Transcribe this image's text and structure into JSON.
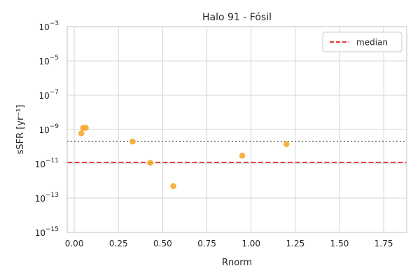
{
  "chart_data": {
    "type": "scatter",
    "title": "Halo 91 - Fósil",
    "xlabel": "Rnorm",
    "ylabel": "sSFR [yr⁻¹]",
    "x_scale": "linear",
    "y_scale": "log",
    "xlim": [
      -0.04,
      1.88
    ],
    "ylim": [
      1e-15,
      0.001
    ],
    "x_ticks": [
      0.0,
      0.25,
      0.5,
      0.75,
      1.0,
      1.25,
      1.5,
      1.75
    ],
    "x_tick_labels": [
      "0.00",
      "0.25",
      "0.50",
      "0.75",
      "1.00",
      "1.25",
      "1.50",
      "1.75"
    ],
    "y_ticks": [
      1e-15,
      1e-13,
      1e-11,
      1e-09,
      1e-07,
      1e-05,
      0.001
    ],
    "y_tick_labels": [
      {
        "base": "10",
        "exp": "−15"
      },
      {
        "base": "10",
        "exp": "−13"
      },
      {
        "base": "10",
        "exp": "−11"
      },
      {
        "base": "10",
        "exp": "−9"
      },
      {
        "base": "10",
        "exp": "−7"
      },
      {
        "base": "10",
        "exp": "−5"
      },
      {
        "base": "10",
        "exp": "−3"
      }
    ],
    "grid": true,
    "legend_position": "top-right",
    "series": [
      {
        "kind": "scatter",
        "color": "#f5a623",
        "points": [
          {
            "x": 0.04,
            "y": 6e-10
          },
          {
            "x": 0.05,
            "y": 1.25e-09
          },
          {
            "x": 0.065,
            "y": 1.25e-09
          },
          {
            "x": 0.33,
            "y": 2e-10
          },
          {
            "x": 0.43,
            "y": 1.15e-11
          },
          {
            "x": 0.56,
            "y": 5e-13
          },
          {
            "x": 0.95,
            "y": 3e-11
          },
          {
            "x": 1.2,
            "y": 1.4e-10
          }
        ]
      }
    ],
    "reference_lines": [
      {
        "name": "median",
        "orientation": "horizontal",
        "y": 1.2e-11,
        "color": "#e8161b",
        "style": "dashed",
        "in_legend": true
      },
      {
        "orientation": "horizontal",
        "y": 2e-10,
        "color": "#6e6e6e",
        "style": "dotted",
        "in_legend": false
      }
    ]
  }
}
